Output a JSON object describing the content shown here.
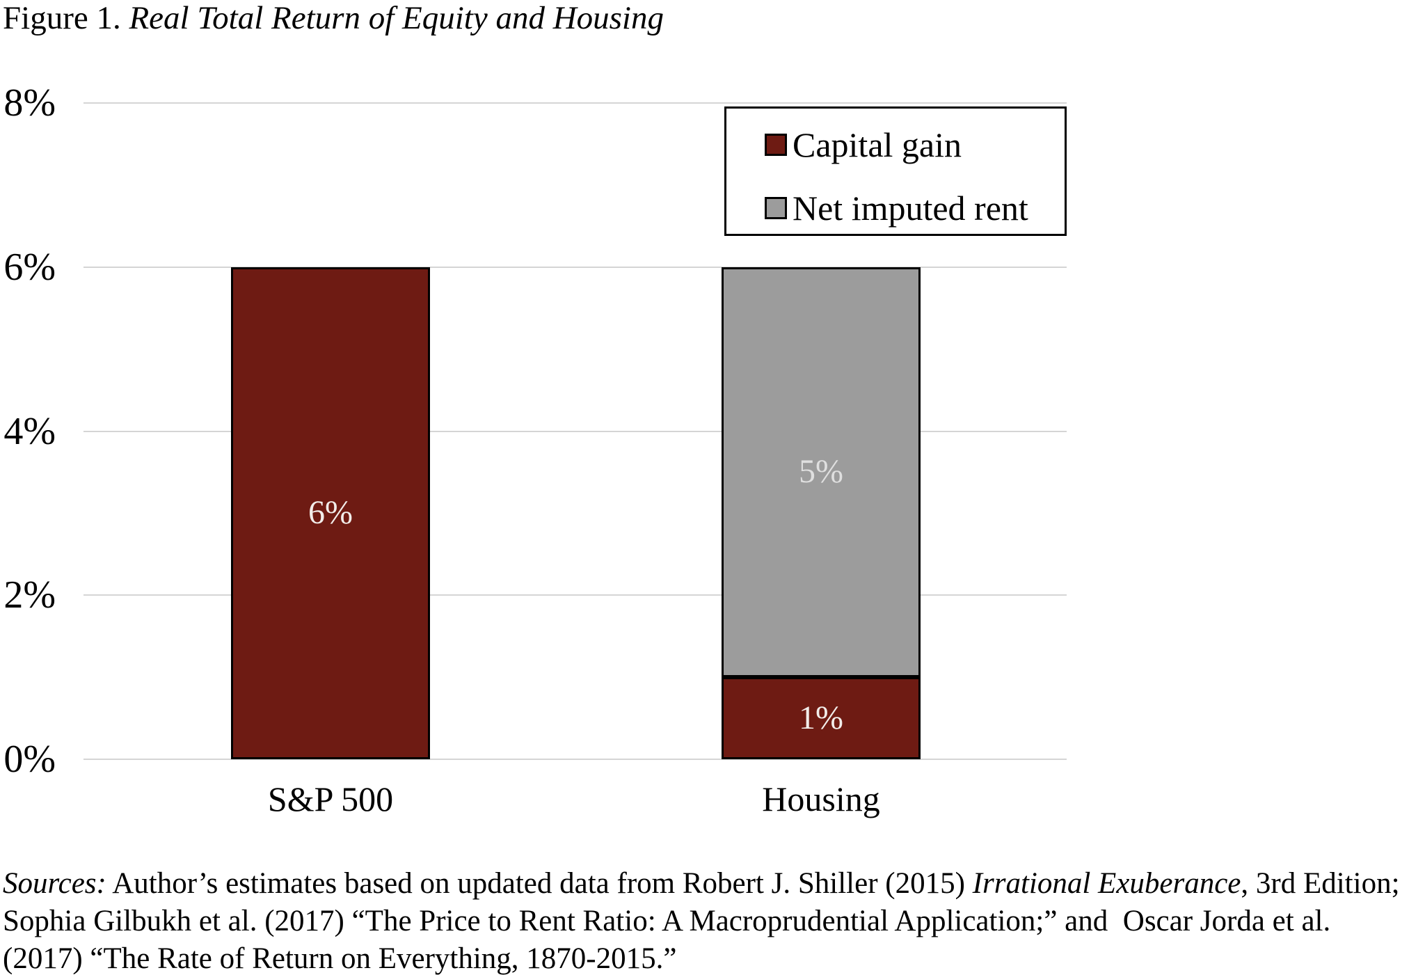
{
  "title": {
    "prefix": "Figure 1. ",
    "italic": "Real Total Return of Equity and Housing"
  },
  "chart_data": {
    "type": "bar",
    "stacked": true,
    "title": "Real Total Return of Equity and Housing",
    "categories": [
      "S&P 500",
      "Housing"
    ],
    "series": [
      {
        "name": "Capital gain",
        "values": [
          6,
          1
        ],
        "labels": [
          "6%",
          "1%"
        ],
        "color": "#6E1B13",
        "label_color": "#F2EDEA"
      },
      {
        "name": "Net imputed rent",
        "values": [
          0,
          5
        ],
        "labels": [
          "",
          "5%"
        ],
        "color": "#9C9C9C",
        "label_color": "#DFDFDF"
      }
    ],
    "ylim": [
      0,
      8
    ],
    "ytick_values": [
      0,
      2,
      4,
      6,
      8
    ],
    "yticks": [
      "0%",
      "2%",
      "4%",
      "6%",
      "8%"
    ],
    "xlabel": "",
    "ylabel": "",
    "grid": true,
    "gridline_color": "#D5D5D5",
    "bar_border_color": "#000000",
    "legend_position": "top-right",
    "legend_entries": [
      "Capital gain",
      "Net imputed rent"
    ]
  },
  "sources": {
    "lines": [
      [
        {
          "t": "Sources:",
          "i": true
        },
        {
          "t": " Author’s estimates based on updated data from Robert J. Shiller (2015) ",
          "i": false
        },
        {
          "t": "Irrational Exuberance",
          "i": true
        },
        {
          "t": ", 3rd Edition;",
          "i": false
        }
      ],
      [
        {
          "t": "Sophia Gilbukh et al. (2017) “The Price to Rent Ratio: A Macroprudential Application;” and  Oscar Jorda et al.",
          "i": false
        }
      ],
      [
        {
          "t": "(2017) “The Rate of Return on Everything, 1870-2015.”",
          "i": false
        }
      ]
    ]
  }
}
